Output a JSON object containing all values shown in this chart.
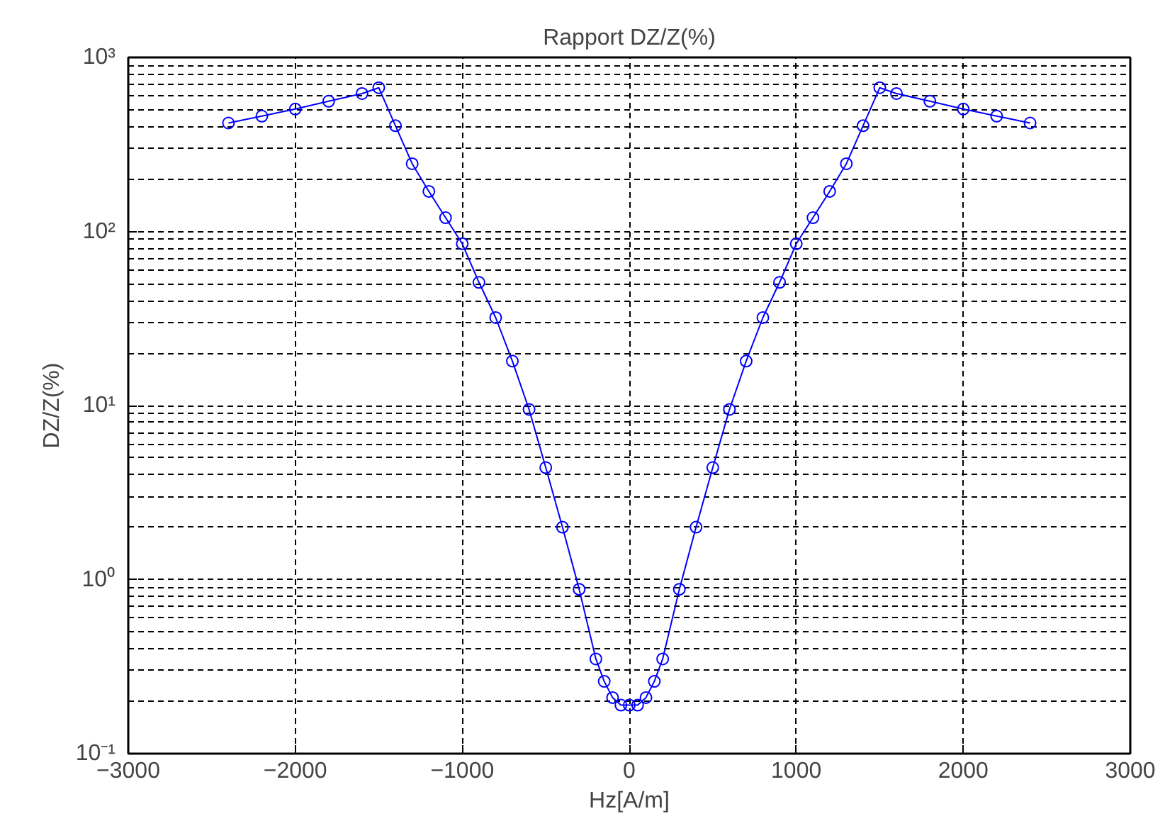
{
  "chart_data": {
    "type": "line",
    "title": "Rapport DZ/Z(%)",
    "xlabel": "Hz[A/m]",
    "ylabel": "DZ/Z(%)",
    "x": [
      -2400,
      -2200,
      -2000,
      -1800,
      -1600,
      -1500,
      -1400,
      -1300,
      -1200,
      -1100,
      -1000,
      -900,
      -800,
      -700,
      -600,
      -500,
      -400,
      -300,
      -200,
      -150,
      -100,
      -50,
      0,
      50,
      100,
      150,
      200,
      300,
      400,
      500,
      600,
      700,
      800,
      900,
      1000,
      1100,
      1200,
      1300,
      1400,
      1500,
      1600,
      1800,
      2000,
      2200,
      2400
    ],
    "series": [
      {
        "color": "#0000ff",
        "values": [
          420,
          460,
          505,
          560,
          620,
          670,
          405,
          245,
          170,
          120,
          85,
          51,
          32,
          18,
          9.5,
          4.4,
          2.0,
          0.88,
          0.35,
          0.26,
          0.21,
          0.19,
          0.19,
          0.19,
          0.21,
          0.26,
          0.35,
          0.88,
          2.0,
          4.4,
          9.5,
          18,
          32,
          51,
          85,
          120,
          170,
          245,
          405,
          670,
          620,
          560,
          505,
          460,
          420
        ]
      }
    ],
    "xlim": [
      -3000,
      3000
    ],
    "xticks": [
      -3000,
      -2000,
      -1000,
      0,
      1000,
      2000,
      3000
    ],
    "ylim": [
      0.1,
      1000
    ],
    "yticks": [
      {
        "value": 0.1,
        "label": "10⁻¹"
      },
      {
        "value": 1,
        "label": "10⁰"
      },
      {
        "value": 10,
        "label": "10¹"
      },
      {
        "value": 100,
        "label": "10²"
      },
      {
        "value": 1000,
        "label": "10³"
      }
    ],
    "log": "y",
    "grid": true,
    "marker": "circle",
    "line_style": "solid"
  }
}
